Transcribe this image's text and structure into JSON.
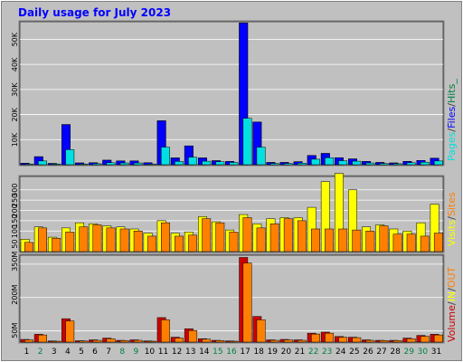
{
  "window": {
    "title": "Daily usage for July 2023",
    "title_color": "#0000ff",
    "background": "#c0c0c0",
    "panel_background": "#c0c0c0",
    "grid_color": "#ffffff"
  },
  "legend": {
    "panel1": [
      {
        "text": "Pages",
        "color": "#00e0e0"
      },
      {
        "text": "/",
        "color": "#404040"
      },
      {
        "text": "Files",
        "color": "#0000ff"
      },
      {
        "text": "/",
        "color": "#404040"
      },
      {
        "text": "Hits_",
        "color": "#008040"
      }
    ],
    "panel2": [
      {
        "text": "Visits",
        "color": "#ffff00"
      },
      {
        "text": "/",
        "color": "#404040"
      },
      {
        "text": "Sites",
        "color": "#ff8000"
      }
    ],
    "panel3": [
      {
        "text": "Volume",
        "color": "#cc0000"
      },
      {
        "text": "/",
        "color": "#404040"
      },
      {
        "text": "IN",
        "color": "#ffff00"
      },
      {
        "text": "/",
        "color": "#404040"
      },
      {
        "text": "OUT",
        "color": "#ff8000"
      }
    ]
  },
  "chart_data": [
    {
      "type": "bar",
      "title": "Daily usage for July 2023",
      "categories": [
        "1",
        "2",
        "3",
        "4",
        "5",
        "6",
        "7",
        "8",
        "9",
        "10",
        "11",
        "12",
        "13",
        "14",
        "15",
        "16",
        "17",
        "18",
        "19",
        "20",
        "21",
        "22",
        "23",
        "24",
        "25",
        "26",
        "27",
        "28",
        "29",
        "30",
        "31"
      ],
      "weekend_days": [
        "2",
        "8",
        "9",
        "15",
        "16",
        "22",
        "23",
        "29",
        "30"
      ],
      "ylim": [
        0,
        57000
      ],
      "yticks": [
        10000,
        20000,
        30000,
        40000,
        50000
      ],
      "ytick_labels": [
        "10K",
        "20K",
        "30K",
        "40K",
        "50K"
      ],
      "series": [
        {
          "name": "Hits",
          "color": "#008040",
          "values": [
            600,
            3200,
            500,
            16000,
            700,
            800,
            1800,
            1500,
            1500,
            800,
            17500,
            2700,
            7500,
            2700,
            1600,
            1300,
            56500,
            17000,
            900,
            900,
            1200,
            3700,
            4500,
            2800,
            2300,
            1300,
            900,
            700,
            1300,
            1700,
            2600
          ]
        },
        {
          "name": "Files",
          "color": "#0000ff",
          "values": [
            600,
            3200,
            500,
            16000,
            700,
            800,
            1800,
            1500,
            1500,
            800,
            17500,
            2700,
            7500,
            2700,
            1600,
            1300,
            56500,
            17000,
            900,
            900,
            1200,
            3700,
            4500,
            2800,
            2300,
            1300,
            900,
            700,
            1300,
            1700,
            2600
          ]
        },
        {
          "name": "Pages",
          "color": "#00e0e0",
          "values": [
            300,
            1500,
            300,
            6000,
            300,
            400,
            800,
            700,
            700,
            300,
            7000,
            1300,
            3000,
            1400,
            1200,
            900,
            18500,
            7000,
            500,
            500,
            600,
            2200,
            2800,
            1600,
            1400,
            700,
            500,
            400,
            800,
            1000,
            1500
          ]
        }
      ]
    },
    {
      "type": "bar",
      "categories": [
        "1",
        "2",
        "3",
        "4",
        "5",
        "6",
        "7",
        "8",
        "9",
        "10",
        "11",
        "12",
        "13",
        "14",
        "15",
        "16",
        "17",
        "18",
        "19",
        "20",
        "21",
        "22",
        "23",
        "24",
        "25",
        "26",
        "27",
        "28",
        "29",
        "30",
        "31"
      ],
      "ylim": [
        0,
        365
      ],
      "yticks": [
        50,
        100,
        150,
        200,
        250,
        300
      ],
      "ytick_labels": [
        "50",
        "100",
        "150",
        "200",
        "250",
        "300"
      ],
      "series": [
        {
          "name": "Visits",
          "color": "#ffff00",
          "values": [
            60,
            120,
            70,
            115,
            140,
            135,
            125,
            120,
            110,
            90,
            150,
            90,
            95,
            170,
            145,
            105,
            180,
            135,
            160,
            165,
            165,
            215,
            340,
            380,
            300,
            120,
            130,
            110,
            100,
            140,
            230
          ]
        },
        {
          "name": "Sites",
          "color": "#ff8000",
          "values": [
            45,
            115,
            65,
            95,
            120,
            130,
            115,
            110,
            100,
            75,
            140,
            75,
            80,
            160,
            140,
            95,
            165,
            115,
            135,
            160,
            150,
            110,
            110,
            110,
            105,
            100,
            125,
            85,
            85,
            75,
            90
          ]
        }
      ]
    },
    {
      "type": "bar",
      "categories": [
        "1",
        "2",
        "3",
        "4",
        "5",
        "6",
        "7",
        "8",
        "9",
        "10",
        "11",
        "12",
        "13",
        "14",
        "15",
        "16",
        "17",
        "18",
        "19",
        "20",
        "21",
        "22",
        "23",
        "24",
        "25",
        "26",
        "27",
        "28",
        "29",
        "30",
        "31"
      ],
      "ylim": [
        0,
        390
      ],
      "yticks": [
        50,
        200,
        350
      ],
      "ytick_labels": [
        "50M",
        "200M",
        "350M"
      ],
      "series": [
        {
          "name": "Volume",
          "color": "#cc0000",
          "values": [
            12,
            35,
            5,
            105,
            6,
            10,
            18,
            8,
            10,
            5,
            110,
            22,
            60,
            15,
            8,
            5,
            380,
            115,
            10,
            12,
            10,
            40,
            45,
            25,
            22,
            10,
            8,
            8,
            18,
            30,
            35
          ]
        },
        {
          "name": "IN",
          "color": "#ffff00",
          "values": [
            0,
            0,
            0,
            0,
            0,
            0,
            0,
            0,
            0,
            0,
            0,
            0,
            0,
            0,
            0,
            0,
            0,
            0,
            0,
            0,
            0,
            0,
            0,
            0,
            0,
            0,
            0,
            0,
            0,
            0,
            0
          ]
        },
        {
          "name": "OUT",
          "color": "#ff8000",
          "values": [
            10,
            32,
            4,
            95,
            5,
            8,
            15,
            7,
            8,
            4,
            100,
            18,
            52,
            13,
            7,
            4,
            355,
            100,
            8,
            10,
            8,
            36,
            40,
            22,
            20,
            8,
            7,
            7,
            15,
            26,
            32
          ]
        }
      ]
    }
  ]
}
